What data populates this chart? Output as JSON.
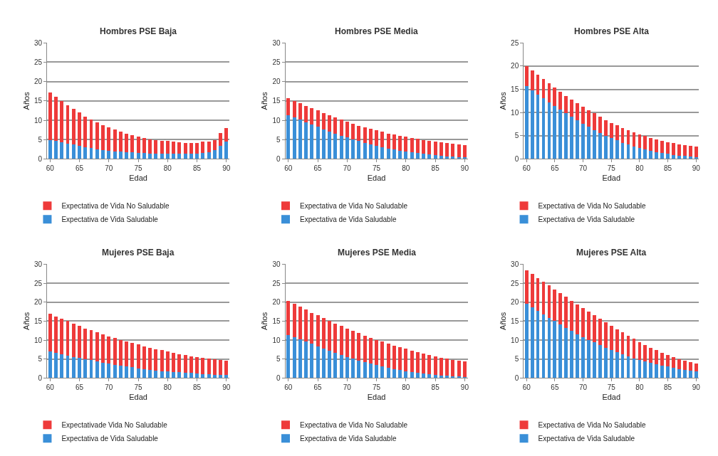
{
  "chart_data": [
    {
      "type": "bar",
      "title": "Hombres PSE Baja",
      "xlabel": "Edad",
      "ylabel": "Años",
      "stacked": true,
      "grid": "y",
      "legend": "bottom",
      "x": [
        60,
        61,
        62,
        63,
        64,
        65,
        66,
        67,
        68,
        69,
        70,
        71,
        72,
        73,
        74,
        75,
        76,
        77,
        78,
        79,
        80,
        81,
        82,
        83,
        84,
        85,
        86,
        87,
        88,
        89,
        90
      ],
      "xlim": [
        59.5,
        90.5
      ],
      "xticks": [
        60,
        65,
        70,
        75,
        80,
        85,
        90
      ],
      "ylim": [
        0,
        30
      ],
      "yticks": [
        0,
        5,
        10,
        15,
        20,
        25,
        30
      ],
      "series": [
        {
          "name": "Expectativa de Vida Saludable",
          "color": "#3a8fd8",
          "values": [
            4.9,
            4.6,
            4.3,
            4.0,
            3.7,
            3.4,
            3.1,
            2.8,
            2.5,
            2.3,
            2.1,
            2.0,
            1.9,
            1.8,
            1.7,
            1.6,
            1.5,
            1.4,
            1.4,
            1.3,
            1.3,
            1.3,
            1.3,
            1.3,
            1.3,
            1.4,
            1.6,
            1.7,
            2.2,
            3.4,
            4.5
          ]
        },
        {
          "name": "Expectativa de Vida No Saludable",
          "color": "#ee3a3a",
          "values": [
            12.3,
            11.5,
            10.7,
            9.9,
            9.3,
            8.6,
            7.9,
            7.4,
            7.0,
            6.4,
            6.0,
            5.6,
            5.2,
            4.8,
            4.4,
            4.2,
            3.9,
            3.7,
            3.5,
            3.4,
            3.3,
            3.1,
            3.0,
            2.9,
            2.9,
            2.8,
            2.8,
            2.8,
            2.7,
            3.3,
            3.4
          ]
        }
      ]
    },
    {
      "type": "bar",
      "title": "Hombres PSE Media",
      "xlabel": "Edad",
      "ylabel": "Años",
      "stacked": true,
      "grid": "y",
      "legend": "bottom",
      "x": [
        60,
        61,
        62,
        63,
        64,
        65,
        66,
        67,
        68,
        69,
        70,
        71,
        72,
        73,
        74,
        75,
        76,
        77,
        78,
        79,
        80,
        81,
        82,
        83,
        84,
        85,
        86,
        87,
        88,
        89,
        90
      ],
      "xlim": [
        59.5,
        90.5
      ],
      "xticks": [
        60,
        65,
        70,
        75,
        80,
        85,
        90
      ],
      "ylim": [
        0,
        30
      ],
      "yticks": [
        0,
        5,
        10,
        15,
        20,
        25,
        30
      ],
      "series": [
        {
          "name": "Expectativa de Vida Saludable",
          "color": "#3a8fd8",
          "values": [
            11.3,
            10.7,
            10.1,
            9.5,
            8.9,
            8.3,
            7.7,
            7.1,
            6.5,
            6.0,
            5.5,
            5.0,
            4.6,
            4.1,
            3.7,
            3.3,
            3.0,
            2.7,
            2.4,
            2.1,
            1.9,
            1.7,
            1.5,
            1.3,
            1.1,
            0.9,
            0.8,
            0.7,
            0.6,
            0.5,
            0.4
          ]
        },
        {
          "name": "Expectativa de Vida No Saludable",
          "color": "#ee3a3a",
          "values": [
            4.4,
            4.3,
            4.3,
            4.2,
            4.2,
            4.2,
            4.2,
            4.2,
            4.2,
            4.1,
            4.1,
            4.1,
            4.0,
            4.1,
            4.1,
            4.1,
            4.0,
            3.9,
            3.9,
            3.9,
            3.8,
            3.7,
            3.7,
            3.6,
            3.6,
            3.6,
            3.5,
            3.4,
            3.3,
            3.2,
            3.1
          ]
        }
      ]
    },
    {
      "type": "bar",
      "title": "Hombres PSE Alta",
      "xlabel": "Edad",
      "ylabel": "Años",
      "stacked": true,
      "grid": "y",
      "legend": "bottom",
      "x": [
        60,
        61,
        62,
        63,
        64,
        65,
        66,
        67,
        68,
        69,
        70,
        71,
        72,
        73,
        74,
        75,
        76,
        77,
        78,
        79,
        80,
        81,
        82,
        83,
        84,
        85,
        86,
        87,
        88,
        89,
        90
      ],
      "xlim": [
        59.5,
        90.5
      ],
      "xticks": [
        60,
        65,
        70,
        75,
        80,
        85,
        90
      ],
      "ylim": [
        0,
        25
      ],
      "yticks": [
        0,
        5,
        10,
        15,
        20,
        25
      ],
      "series": [
        {
          "name": "Expectativa de Vida Saludable",
          "color": "#3a8fd8",
          "values": [
            15.7,
            14.8,
            13.9,
            13.1,
            12.2,
            11.4,
            10.6,
            9.8,
            9.1,
            8.3,
            7.6,
            6.9,
            6.2,
            5.6,
            5.0,
            4.5,
            4.0,
            3.5,
            3.1,
            2.7,
            2.3,
            2.0,
            1.7,
            1.5,
            1.3,
            1.1,
            0.9,
            0.7,
            0.6,
            0.5,
            0.4
          ]
        },
        {
          "name": "Expectativa de Vida No Saludable",
          "color": "#ee3a3a",
          "values": [
            4.3,
            4.2,
            4.2,
            4.1,
            4.1,
            4.0,
            3.9,
            3.8,
            3.7,
            3.7,
            3.7,
            3.6,
            3.6,
            3.5,
            3.4,
            3.3,
            3.2,
            3.2,
            3.1,
            3.0,
            3.0,
            2.9,
            2.8,
            2.7,
            2.6,
            2.5,
            2.5,
            2.5,
            2.4,
            2.3,
            2.2
          ]
        }
      ]
    },
    {
      "type": "bar",
      "title": "Mujeres PSE Baja",
      "xlabel": "Edad",
      "ylabel": "Años",
      "stacked": true,
      "grid": "y",
      "legend": "bottom",
      "x": [
        60,
        61,
        62,
        63,
        64,
        65,
        66,
        67,
        68,
        69,
        70,
        71,
        72,
        73,
        74,
        75,
        76,
        77,
        78,
        79,
        80,
        81,
        82,
        83,
        84,
        85,
        86,
        87,
        88,
        89,
        90
      ],
      "xlim": [
        59.5,
        90.5
      ],
      "xticks": [
        60,
        65,
        70,
        75,
        80,
        85,
        90
      ],
      "ylim": [
        0,
        30
      ],
      "yticks": [
        0,
        5,
        10,
        15,
        20,
        25,
        30
      ],
      "series": [
        {
          "name": "Expectativa de Vida Saludable",
          "color": "#3a8fd8",
          "values": [
            7.0,
            6.6,
            6.2,
            5.9,
            5.6,
            5.3,
            5.0,
            4.7,
            4.4,
            4.1,
            3.8,
            3.5,
            3.2,
            3.0,
            2.8,
            2.6,
            2.4,
            2.2,
            2.0,
            1.8,
            1.7,
            1.6,
            1.5,
            1.4,
            1.3,
            1.2,
            1.1,
            1.0,
            0.9,
            0.8,
            0.8
          ]
        },
        {
          "name": "Expectativade Vida No Saludable",
          "color": "#ee3a3a",
          "values": [
            10.0,
            9.6,
            9.5,
            9.1,
            8.7,
            8.4,
            8.1,
            7.9,
            7.6,
            7.4,
            7.2,
            7.0,
            6.8,
            6.6,
            6.4,
            6.2,
            6.0,
            5.8,
            5.6,
            5.5,
            5.3,
            5.0,
            4.8,
            4.6,
            4.4,
            4.3,
            4.2,
            4.1,
            4.0,
            3.9,
            3.8
          ]
        }
      ]
    },
    {
      "type": "bar",
      "title": "Mujeres PSE Media",
      "xlabel": "Edad",
      "ylabel": "Años",
      "stacked": true,
      "grid": "y",
      "legend": "bottom",
      "x": [
        60,
        61,
        62,
        63,
        64,
        65,
        66,
        67,
        68,
        69,
        70,
        71,
        72,
        73,
        74,
        75,
        76,
        77,
        78,
        79,
        80,
        81,
        82,
        83,
        84,
        85,
        86,
        87,
        88,
        89,
        90
      ],
      "xlim": [
        59.5,
        90.5
      ],
      "xticks": [
        60,
        65,
        70,
        75,
        80,
        85,
        90
      ],
      "ylim": [
        0,
        30
      ],
      "yticks": [
        0,
        5,
        10,
        15,
        20,
        25,
        30
      ],
      "series": [
        {
          "name": "Expectativa de Vida Saludable",
          "color": "#3a8fd8",
          "values": [
            11.4,
            10.8,
            10.2,
            9.6,
            9.0,
            8.4,
            7.8,
            7.2,
            6.7,
            6.1,
            5.6,
            5.1,
            4.6,
            4.2,
            3.8,
            3.4,
            3.0,
            2.7,
            2.4,
            2.1,
            1.8,
            1.6,
            1.4,
            1.2,
            1.0,
            0.8,
            0.7,
            0.6,
            0.5,
            0.4,
            0.3
          ]
        },
        {
          "name": "Expectativa de Vida No Saludable",
          "color": "#ee3a3a",
          "values": [
            9.0,
            8.8,
            8.6,
            8.4,
            8.2,
            8.1,
            8.0,
            7.9,
            7.7,
            7.6,
            7.5,
            7.3,
            7.2,
            7.0,
            6.8,
            6.7,
            6.6,
            6.4,
            6.2,
            6.0,
            5.9,
            5.6,
            5.4,
            5.2,
            5.0,
            4.9,
            4.7,
            4.5,
            4.3,
            4.1,
            4.0
          ]
        }
      ]
    },
    {
      "type": "bar",
      "title": "Mujeres PSE Alta",
      "xlabel": "Edad",
      "ylabel": "Años",
      "stacked": true,
      "grid": "y",
      "legend": "bottom",
      "x": [
        60,
        61,
        62,
        63,
        64,
        65,
        66,
        67,
        68,
        69,
        70,
        71,
        72,
        73,
        74,
        75,
        76,
        77,
        78,
        79,
        80,
        81,
        82,
        83,
        84,
        85,
        86,
        87,
        88,
        89,
        90
      ],
      "xlim": [
        59.5,
        90.5
      ],
      "xticks": [
        60,
        65,
        70,
        75,
        80,
        85,
        90
      ],
      "ylim": [
        0,
        30
      ],
      "yticks": [
        0,
        5,
        10,
        15,
        20,
        25,
        30
      ],
      "series": [
        {
          "name": "Expectativa de Vida Saludable",
          "color": "#3a8fd8",
          "values": [
            19.5,
            18.6,
            17.7,
            16.8,
            15.9,
            15.0,
            14.1,
            13.2,
            12.4,
            11.6,
            10.8,
            10.1,
            9.4,
            8.7,
            8.0,
            7.4,
            6.8,
            6.2,
            5.7,
            5.2,
            4.8,
            4.4,
            4.0,
            3.6,
            3.3,
            3.0,
            2.7,
            2.4,
            2.1,
            1.9,
            1.7
          ]
        },
        {
          "name": "Expectativa de Vida No Saludable",
          "color": "#ee3a3a",
          "values": [
            8.9,
            8.8,
            8.7,
            8.6,
            8.5,
            8.4,
            8.3,
            8.2,
            8.0,
            7.8,
            7.7,
            7.4,
            7.2,
            6.9,
            6.7,
            6.4,
            6.1,
            5.8,
            5.4,
            5.1,
            4.7,
            4.3,
            4.0,
            3.7,
            3.4,
            3.1,
            2.8,
            2.6,
            2.5,
            2.3,
            2.1
          ]
        }
      ]
    }
  ]
}
